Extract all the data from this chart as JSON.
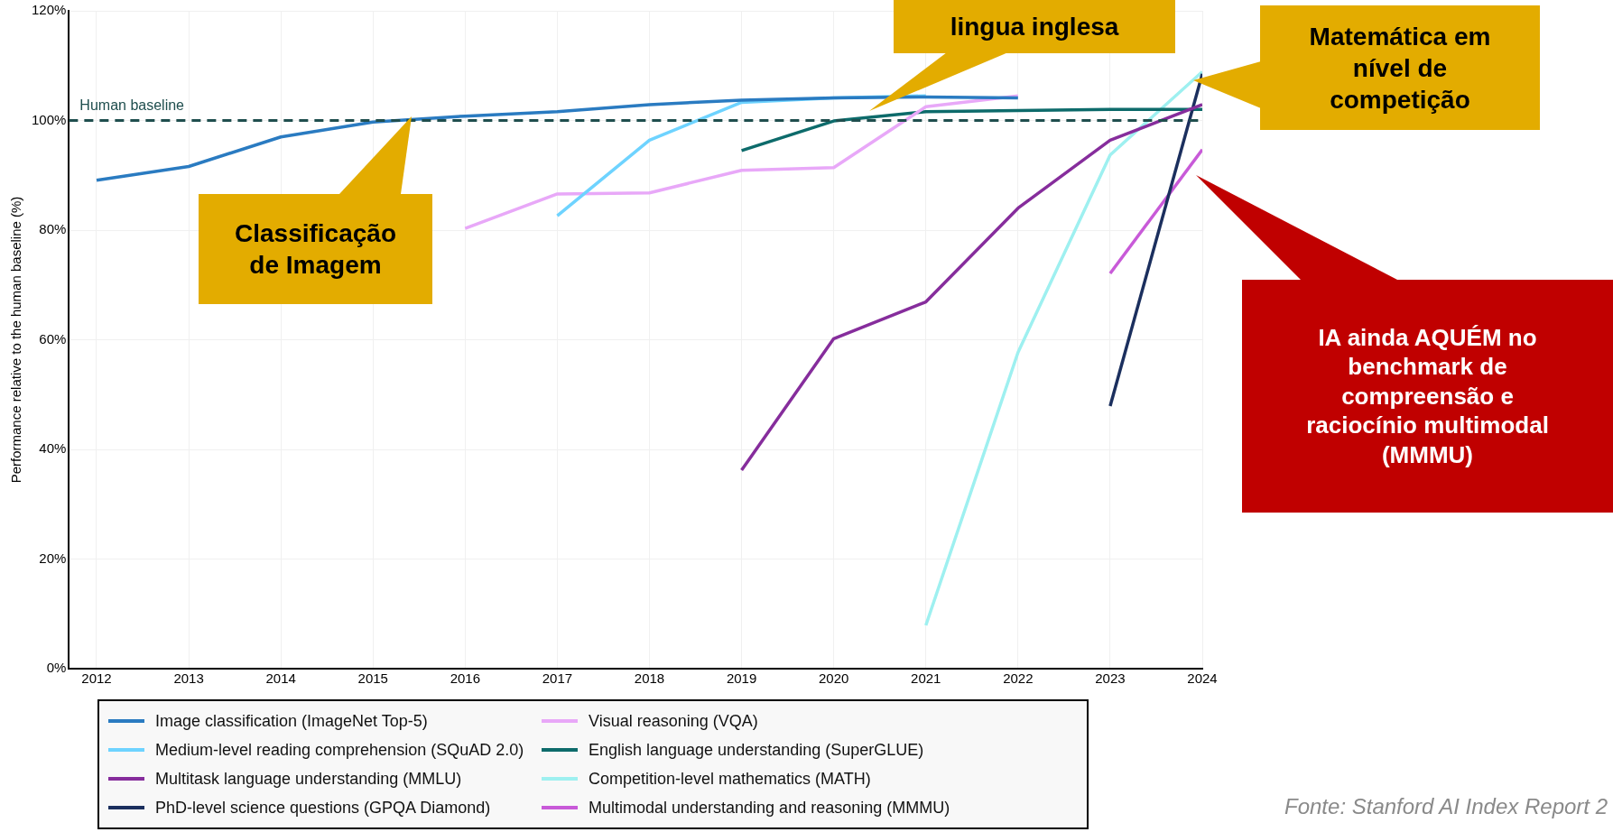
{
  "chart_data": {
    "type": "line",
    "ylabel": "Performance relative to the human baseline (%)",
    "xlim": [
      2011.7,
      2024
    ],
    "xticks": [
      2012,
      2013,
      2014,
      2015,
      2016,
      2017,
      2018,
      2019,
      2020,
      2021,
      2022,
      2023,
      2024
    ],
    "ylim": [
      0,
      120
    ],
    "yticks": [
      {
        "value": 0,
        "label": "0%"
      },
      {
        "value": 20,
        "label": "20%"
      },
      {
        "value": 40,
        "label": "40%"
      },
      {
        "value": 60,
        "label": "60%"
      },
      {
        "value": 80,
        "label": "80%"
      },
      {
        "value": 100,
        "label": "100%"
      },
      {
        "value": 120,
        "label": "120%"
      }
    ],
    "grid": true,
    "legend": "bottom",
    "marker": "none",
    "line_style": "solid",
    "ref_lines": [
      {
        "axis": "y",
        "value": 100,
        "label": "Human baseline",
        "color": "#1f4e4e",
        "line_style": "dashed"
      }
    ],
    "series": [
      {
        "name": "Image classification (ImageNet Top-5)",
        "color": "#2a7bc1",
        "x": [
          2012,
          2013,
          2014,
          2015,
          2016,
          2017,
          2018,
          2019,
          2020,
          2021,
          2022
        ],
        "values": [
          89.1,
          91.6,
          97.0,
          99.7,
          100.8,
          101.6,
          102.9,
          103.7,
          104.1,
          104.3,
          104.1
        ]
      },
      {
        "name": "Medium-level reading comprehension (SQuAD 2.0)",
        "color": "#6ed3ff",
        "x": [
          2017,
          2018,
          2019,
          2020,
          2021
        ],
        "values": [
          82.6,
          96.4,
          103.3,
          104.1,
          104.5
        ]
      },
      {
        "name": "Multitask language understanding (MMLU)",
        "color": "#862d9c",
        "x": [
          2019,
          2020,
          2021,
          2022,
          2023,
          2024
        ],
        "values": [
          36.2,
          60.2,
          66.9,
          84.0,
          96.4,
          102.9
        ]
      },
      {
        "name": "PhD-level science questions (GPQA Diamond)",
        "color": "#1b2f5e",
        "x": [
          2023,
          2024
        ],
        "values": [
          47.9,
          108.5
        ]
      },
      {
        "name": "Visual reasoning (VQA)",
        "color": "#e8a8f8",
        "x": [
          2016,
          2017,
          2018,
          2019,
          2020,
          2021,
          2022
        ],
        "values": [
          80.3,
          86.6,
          86.8,
          90.9,
          91.4,
          102.5,
          104.5
        ]
      },
      {
        "name": "English language understanding (SuperGLUE)",
        "color": "#0d6b6b",
        "x": [
          2019,
          2020,
          2021,
          2022,
          2023,
          2024
        ],
        "values": [
          94.5,
          99.9,
          101.6,
          101.8,
          102.0,
          102.0
        ]
      },
      {
        "name": "Competition-level mathematics (MATH)",
        "color": "#9ef0f0",
        "x": [
          2021,
          2022,
          2023,
          2024
        ],
        "values": [
          7.9,
          57.7,
          93.7,
          108.9
        ]
      },
      {
        "name": "Multimodal understanding and reasoning (MMMU)",
        "color": "#c85ad8",
        "x": [
          2023,
          2024
        ],
        "values": [
          72.1,
          94.7
        ]
      }
    ],
    "annotations": [
      "Classificação de Imagem",
      "lingua inglesa",
      "Matemática em nível de competição",
      "IA ainda AQUÉM no benchmark de compreensão e raciocínio multimodal (MMMU)",
      "Fonte: Stanford AI Index Report 2"
    ]
  }
}
